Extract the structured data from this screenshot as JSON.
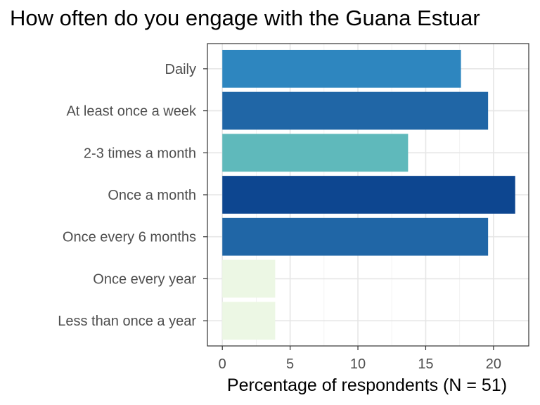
{
  "chart_data": {
    "type": "bar",
    "orientation": "horizontal",
    "title": "How often do you engage with the Guana Estuar",
    "xlabel": "Percentage of respondents (N = 51)",
    "ylabel": "",
    "categories": [
      "Daily",
      "At least once a week",
      "2-3 times a month",
      "Once a month",
      "Once every 6 months",
      "Once every year",
      "Less than once a year"
    ],
    "values": [
      17.6,
      19.6,
      13.7,
      21.6,
      19.6,
      3.9,
      3.9
    ],
    "bar_colors": [
      "#2e86bf",
      "#2066a6",
      "#5fb9bb",
      "#0d4690",
      "#2066a6",
      "#ecf7e4",
      "#ecf7e4"
    ],
    "xlim": [
      -1.1,
      22.6
    ],
    "xticks": [
      0,
      5,
      10,
      15,
      20
    ],
    "grid": true,
    "legend": "none"
  }
}
